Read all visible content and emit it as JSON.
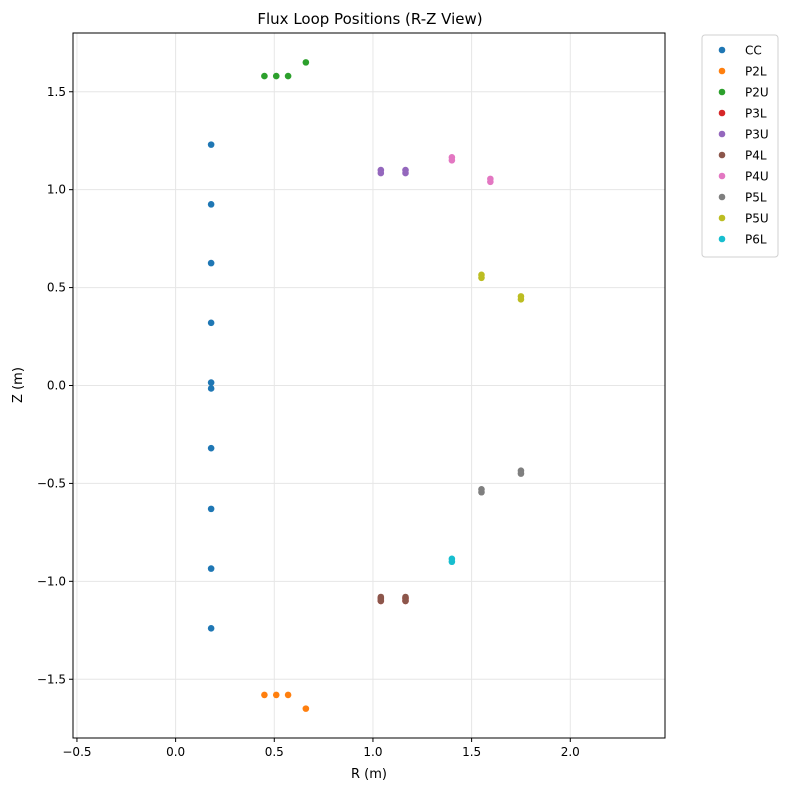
{
  "chart_data": {
    "type": "scatter",
    "title": "Flux Loop Positions (R-Z View)",
    "xlabel": "R (m)",
    "ylabel": "Z (m)",
    "xlim": [
      -0.52,
      2.48
    ],
    "ylim": [
      -1.8,
      1.8
    ],
    "xticks": [
      -0.5,
      0.0,
      0.5,
      1.0,
      1.5,
      2.0
    ],
    "yticks": [
      -1.5,
      -1.0,
      -0.5,
      0.0,
      0.5,
      1.0,
      1.5
    ],
    "xtick_labels": [
      "−0.5",
      "0.0",
      "0.5",
      "1.0",
      "1.5",
      "2.0"
    ],
    "ytick_labels": [
      "−1.5",
      "−1.0",
      "−0.5",
      "0.0",
      "0.5",
      "1.0",
      "1.5"
    ],
    "grid": true,
    "legend_position": "outside-top-right",
    "series": [
      {
        "name": "CC",
        "color": "#1f77b4",
        "points": [
          [
            0.18,
            1.23
          ],
          [
            0.18,
            0.925
          ],
          [
            0.18,
            0.625
          ],
          [
            0.18,
            0.32
          ],
          [
            0.18,
            0.015
          ],
          [
            0.18,
            -0.015
          ],
          [
            0.18,
            -0.32
          ],
          [
            0.18,
            -0.63
          ],
          [
            0.18,
            -0.935
          ],
          [
            0.18,
            -1.24
          ]
        ]
      },
      {
        "name": "P2L",
        "color": "#ff7f0e",
        "points": [
          [
            0.45,
            -1.58
          ],
          [
            0.51,
            -1.58
          ],
          [
            0.57,
            -1.58
          ],
          [
            0.66,
            -1.65
          ]
        ]
      },
      {
        "name": "P2U",
        "color": "#2ca02c",
        "points": [
          [
            0.45,
            1.58
          ],
          [
            0.51,
            1.58
          ],
          [
            0.57,
            1.58
          ],
          [
            0.66,
            1.65
          ]
        ]
      },
      {
        "name": "P3L",
        "color": "#d62728",
        "points": [
          [
            1.04,
            -1.085
          ],
          [
            1.04,
            -1.1
          ],
          [
            1.165,
            -1.085
          ],
          [
            1.165,
            -1.1
          ]
        ]
      },
      {
        "name": "P3U",
        "color": "#9467bd",
        "points": [
          [
            1.04,
            1.1
          ],
          [
            1.04,
            1.085
          ],
          [
            1.165,
            1.1
          ],
          [
            1.165,
            1.085
          ]
        ]
      },
      {
        "name": "P4L",
        "color": "#8c564b",
        "points": [
          [
            1.04,
            -1.08
          ],
          [
            1.04,
            -1.09
          ],
          [
            1.04,
            -1.1
          ],
          [
            1.165,
            -1.08
          ],
          [
            1.165,
            -1.09
          ],
          [
            1.165,
            -1.1
          ]
        ]
      },
      {
        "name": "P4U",
        "color": "#e377c2",
        "points": [
          [
            1.4,
            1.165
          ],
          [
            1.4,
            1.15
          ],
          [
            1.595,
            1.055
          ],
          [
            1.595,
            1.04
          ]
        ]
      },
      {
        "name": "P5L",
        "color": "#7f7f7f",
        "points": [
          [
            1.55,
            -0.53
          ],
          [
            1.55,
            -0.545
          ],
          [
            1.75,
            -0.435
          ],
          [
            1.75,
            -0.45
          ]
        ]
      },
      {
        "name": "P5U",
        "color": "#bcbd22",
        "points": [
          [
            1.55,
            0.565
          ],
          [
            1.55,
            0.55
          ],
          [
            1.75,
            0.455
          ],
          [
            1.75,
            0.44
          ]
        ]
      },
      {
        "name": "P6L",
        "color": "#17becf",
        "points": [
          [
            1.4,
            -0.885
          ],
          [
            1.4,
            -0.9
          ]
        ]
      }
    ]
  }
}
